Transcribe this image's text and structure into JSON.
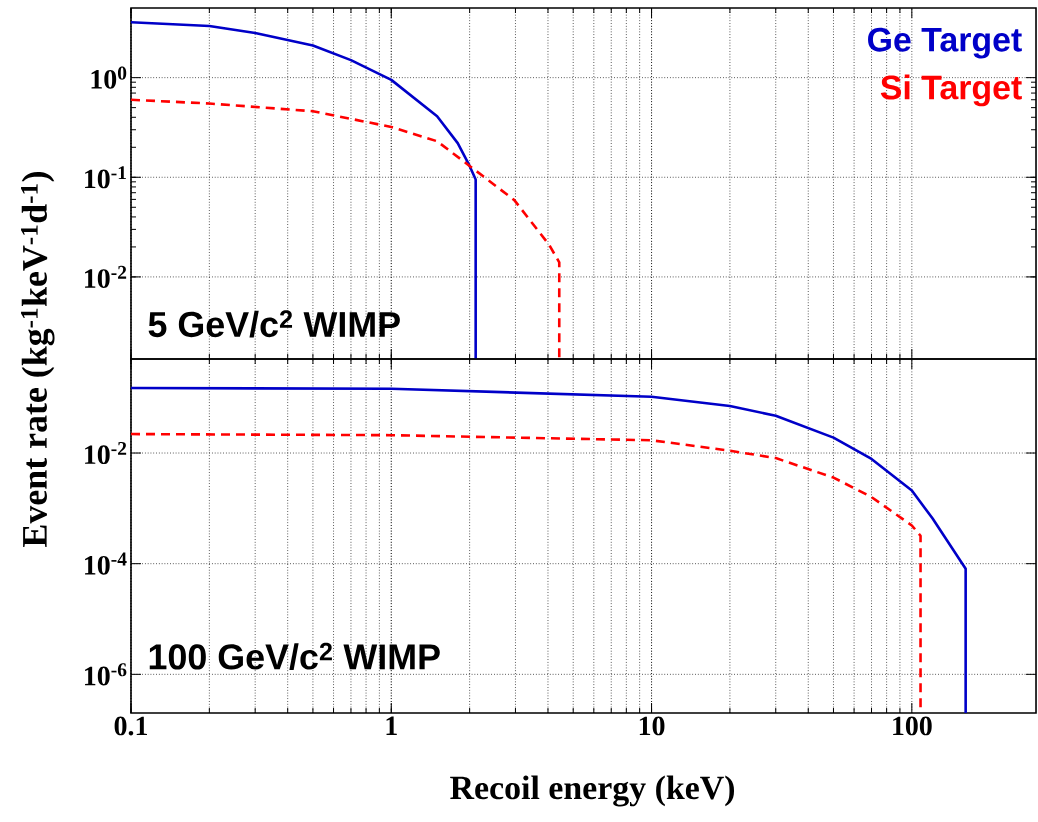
{
  "chart_data": [
    {
      "type": "line",
      "ylabel": "Event rate (kg$^{-1}$keV$^{-1}$d$^{-1}$)",
      "log": "xy",
      "xlim": [
        0.1,
        300
      ],
      "ylim": [
        0.0015,
        5
      ],
      "xticks": [
        0.1,
        1,
        10,
        100
      ],
      "yticks": [
        {
          "value": 0.01,
          "label": "10$^{-2}$"
        },
        {
          "value": 0.1,
          "label": "10$^{-1}$"
        },
        {
          "value": 1,
          "label": "10$^{0}$"
        }
      ],
      "tick_labels": "y",
      "grid": true,
      "legend": "top right",
      "annotations": [
        "5 GeV/c$^{2}$ WIMP"
      ],
      "series": [
        {
          "name": "Ge Target",
          "color": "#0000c8",
          "line_style": "solid",
          "x": [
            0.1,
            0.2,
            0.3,
            0.5,
            0.7,
            1,
            1.5,
            1.8,
            2.0,
            2.11,
            2.11
          ],
          "values": [
            3.6,
            3.3,
            2.8,
            2.1,
            1.5,
            0.95,
            0.41,
            0.22,
            0.13,
            0.095,
            0.0015
          ]
        },
        {
          "name": "Si Target",
          "color": "#ff0000",
          "line_style": "dashed",
          "x": [
            0.1,
            0.2,
            0.5,
            1,
            1.5,
            2,
            2.97,
            4.04,
            4.42,
            4.42
          ],
          "values": [
            0.6,
            0.55,
            0.46,
            0.32,
            0.23,
            0.13,
            0.059,
            0.021,
            0.014,
            0.0015
          ]
        }
      ]
    },
    {
      "type": "line",
      "xlabel": "Recoil energy (keV)",
      "log": "xy",
      "xlim": [
        0.1,
        300
      ],
      "ylim": [
        2e-07,
        0.5
      ],
      "xticks": [
        0.1,
        1,
        10,
        100
      ],
      "yticks": [
        {
          "value": 1e-06,
          "label": "10$^{-6}$"
        },
        {
          "value": 0.0001,
          "label": "10$^{-4}$"
        },
        {
          "value": 0.01,
          "label": "10$^{-2}$"
        }
      ],
      "grid": true,
      "annotations": [
        "100 GeV/c$^{2}$ WIMP"
      ],
      "series": [
        {
          "color": "#0000c8",
          "line_style": "solid",
          "x": [
            0.1,
            1,
            10,
            20,
            30,
            50,
            70,
            100,
            120,
            161,
            161
          ],
          "values": [
            0.15,
            0.145,
            0.104,
            0.071,
            0.047,
            0.019,
            0.0078,
            0.0021,
            0.00066,
            8.1e-05,
            2e-07
          ]
        },
        {
          "color": "#ff0000",
          "line_style": "dashed",
          "x": [
            0.1,
            1,
            10,
            20,
            30,
            50,
            70,
            100,
            108,
            108
          ],
          "values": [
            0.022,
            0.021,
            0.017,
            0.011,
            0.0081,
            0.0036,
            0.0016,
            0.00049,
            0.00032,
            2e-07
          ]
        }
      ]
    }
  ]
}
